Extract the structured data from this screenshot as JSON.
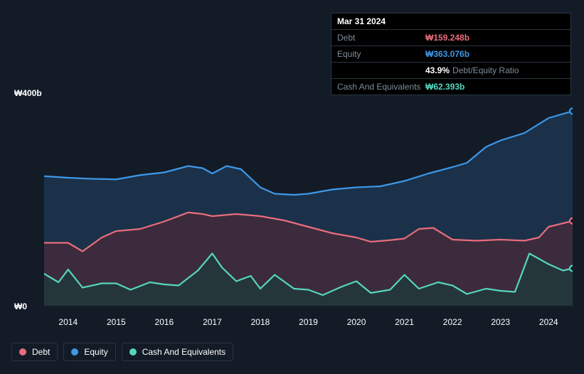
{
  "tooltip": {
    "date": "Mar 31 2024",
    "rows": [
      {
        "label": "Debt",
        "value": "₩159.248b",
        "color": "#e86d7d"
      },
      {
        "label": "Equity",
        "value": "₩363.076b",
        "color": "#3e98e8"
      },
      {
        "label": "",
        "ratio_value": "43.9%",
        "ratio_label": "Debt/Equity Ratio"
      },
      {
        "label": "Cash And Equivalents",
        "value": "₩62.393b",
        "color": "#55d6be"
      }
    ]
  },
  "chart": {
    "type": "area",
    "background_color": "#131b27",
    "grid_color": "#2a3440",
    "text_color": "#ffffff",
    "muted_text_color": "#7f8c9b",
    "ylim": [
      0,
      400
    ],
    "y_ticks": [
      {
        "value": 0,
        "label": "₩0"
      },
      {
        "value": 400,
        "label": "₩400b"
      }
    ],
    "x_labels": [
      "2014",
      "2015",
      "2016",
      "2017",
      "2018",
      "2019",
      "2020",
      "2021",
      "2022",
      "2023",
      "2024"
    ],
    "x_domain": [
      2013.5,
      2024.5
    ],
    "series": [
      {
        "name": "Equity",
        "color": "#3e98e8",
        "fill": "#1e3a56",
        "fill_opacity": 0.75,
        "line_width": 2.2,
        "points": [
          [
            2013.5,
            243
          ],
          [
            2014,
            240
          ],
          [
            2014.5,
            238
          ],
          [
            2015,
            237
          ],
          [
            2015.5,
            245
          ],
          [
            2016,
            250
          ],
          [
            2016.5,
            262
          ],
          [
            2016.8,
            258
          ],
          [
            2017,
            248
          ],
          [
            2017.3,
            262
          ],
          [
            2017.6,
            256
          ],
          [
            2018,
            222
          ],
          [
            2018.3,
            210
          ],
          [
            2018.7,
            208
          ],
          [
            2019,
            210
          ],
          [
            2019.5,
            218
          ],
          [
            2020,
            222
          ],
          [
            2020.5,
            224
          ],
          [
            2021,
            234
          ],
          [
            2021.5,
            248
          ],
          [
            2022,
            260
          ],
          [
            2022.3,
            268
          ],
          [
            2022.7,
            298
          ],
          [
            2023,
            310
          ],
          [
            2023.5,
            324
          ],
          [
            2024,
            352
          ],
          [
            2024.5,
            365
          ]
        ]
      },
      {
        "name": "Debt",
        "color": "#e86d7d",
        "fill": "#4a2a38",
        "fill_opacity": 0.7,
        "line_width": 2.2,
        "points": [
          [
            2013.5,
            118
          ],
          [
            2014,
            118
          ],
          [
            2014.3,
            102
          ],
          [
            2014.7,
            128
          ],
          [
            2015,
            140
          ],
          [
            2015.5,
            144
          ],
          [
            2016,
            158
          ],
          [
            2016.5,
            175
          ],
          [
            2016.8,
            172
          ],
          [
            2017,
            168
          ],
          [
            2017.5,
            172
          ],
          [
            2018,
            168
          ],
          [
            2018.5,
            160
          ],
          [
            2019,
            148
          ],
          [
            2019.5,
            136
          ],
          [
            2020,
            128
          ],
          [
            2020.3,
            120
          ],
          [
            2020.7,
            123
          ],
          [
            2021,
            126
          ],
          [
            2021.3,
            144
          ],
          [
            2021.6,
            146
          ],
          [
            2022,
            124
          ],
          [
            2022.5,
            122
          ],
          [
            2023,
            124
          ],
          [
            2023.5,
            122
          ],
          [
            2023.8,
            128
          ],
          [
            2024,
            148
          ],
          [
            2024.5,
            159
          ]
        ]
      },
      {
        "name": "Cash And Equivalents",
        "color": "#55d6be",
        "fill": "#1f3b3a",
        "fill_opacity": 0.75,
        "line_width": 2.2,
        "points": [
          [
            2013.5,
            60
          ],
          [
            2013.8,
            44
          ],
          [
            2014,
            68
          ],
          [
            2014.3,
            34
          ],
          [
            2014.7,
            42
          ],
          [
            2015,
            42
          ],
          [
            2015.3,
            30
          ],
          [
            2015.7,
            44
          ],
          [
            2016,
            40
          ],
          [
            2016.3,
            38
          ],
          [
            2016.7,
            66
          ],
          [
            2017,
            98
          ],
          [
            2017.2,
            72
          ],
          [
            2017.5,
            46
          ],
          [
            2017.8,
            56
          ],
          [
            2018,
            32
          ],
          [
            2018.3,
            58
          ],
          [
            2018.7,
            32
          ],
          [
            2019,
            30
          ],
          [
            2019.3,
            20
          ],
          [
            2019.7,
            36
          ],
          [
            2020,
            46
          ],
          [
            2020.3,
            24
          ],
          [
            2020.7,
            30
          ],
          [
            2021,
            58
          ],
          [
            2021.3,
            32
          ],
          [
            2021.7,
            44
          ],
          [
            2022,
            38
          ],
          [
            2022.3,
            22
          ],
          [
            2022.7,
            32
          ],
          [
            2023,
            28
          ],
          [
            2023.3,
            26
          ],
          [
            2023.6,
            98
          ],
          [
            2023.8,
            88
          ],
          [
            2024,
            78
          ],
          [
            2024.3,
            66
          ],
          [
            2024.5,
            70
          ]
        ]
      }
    ],
    "legend": [
      {
        "label": "Debt",
        "color": "#e86d7d"
      },
      {
        "label": "Equity",
        "color": "#3e98e8"
      },
      {
        "label": "Cash And Equivalents",
        "color": "#55d6be"
      }
    ]
  }
}
